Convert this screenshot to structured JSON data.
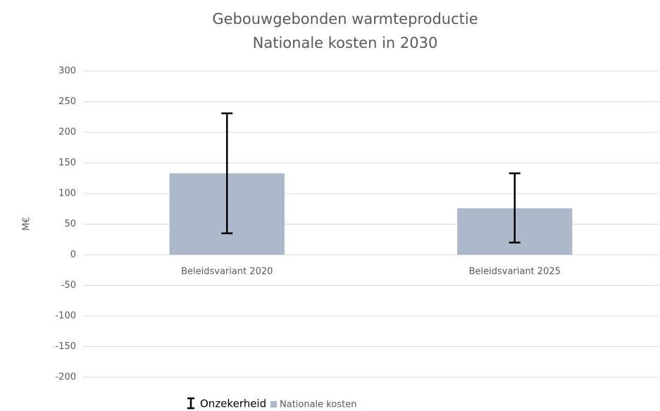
{
  "chart_data": {
    "type": "bar",
    "title": "Gebouwgebonden warmteproductie",
    "subtitle": "Nationale kosten in 2030",
    "y_label": "M€",
    "categories": [
      "Beleidsvariant 2020",
      "Beleidsvariant 2025"
    ],
    "series": [
      {
        "name": "Nationale kosten",
        "color": "#adb9ca",
        "values": [
          133,
          76
        ],
        "error_name": "Onzekerheid",
        "error_low": [
          35,
          20
        ],
        "error_high": [
          231,
          133
        ]
      }
    ],
    "ylim": [
      -200,
      300
    ],
    "yticks": [
      -200,
      -150,
      -100,
      -50,
      0,
      50,
      100,
      150,
      200,
      250,
      300
    ],
    "grid": true
  }
}
